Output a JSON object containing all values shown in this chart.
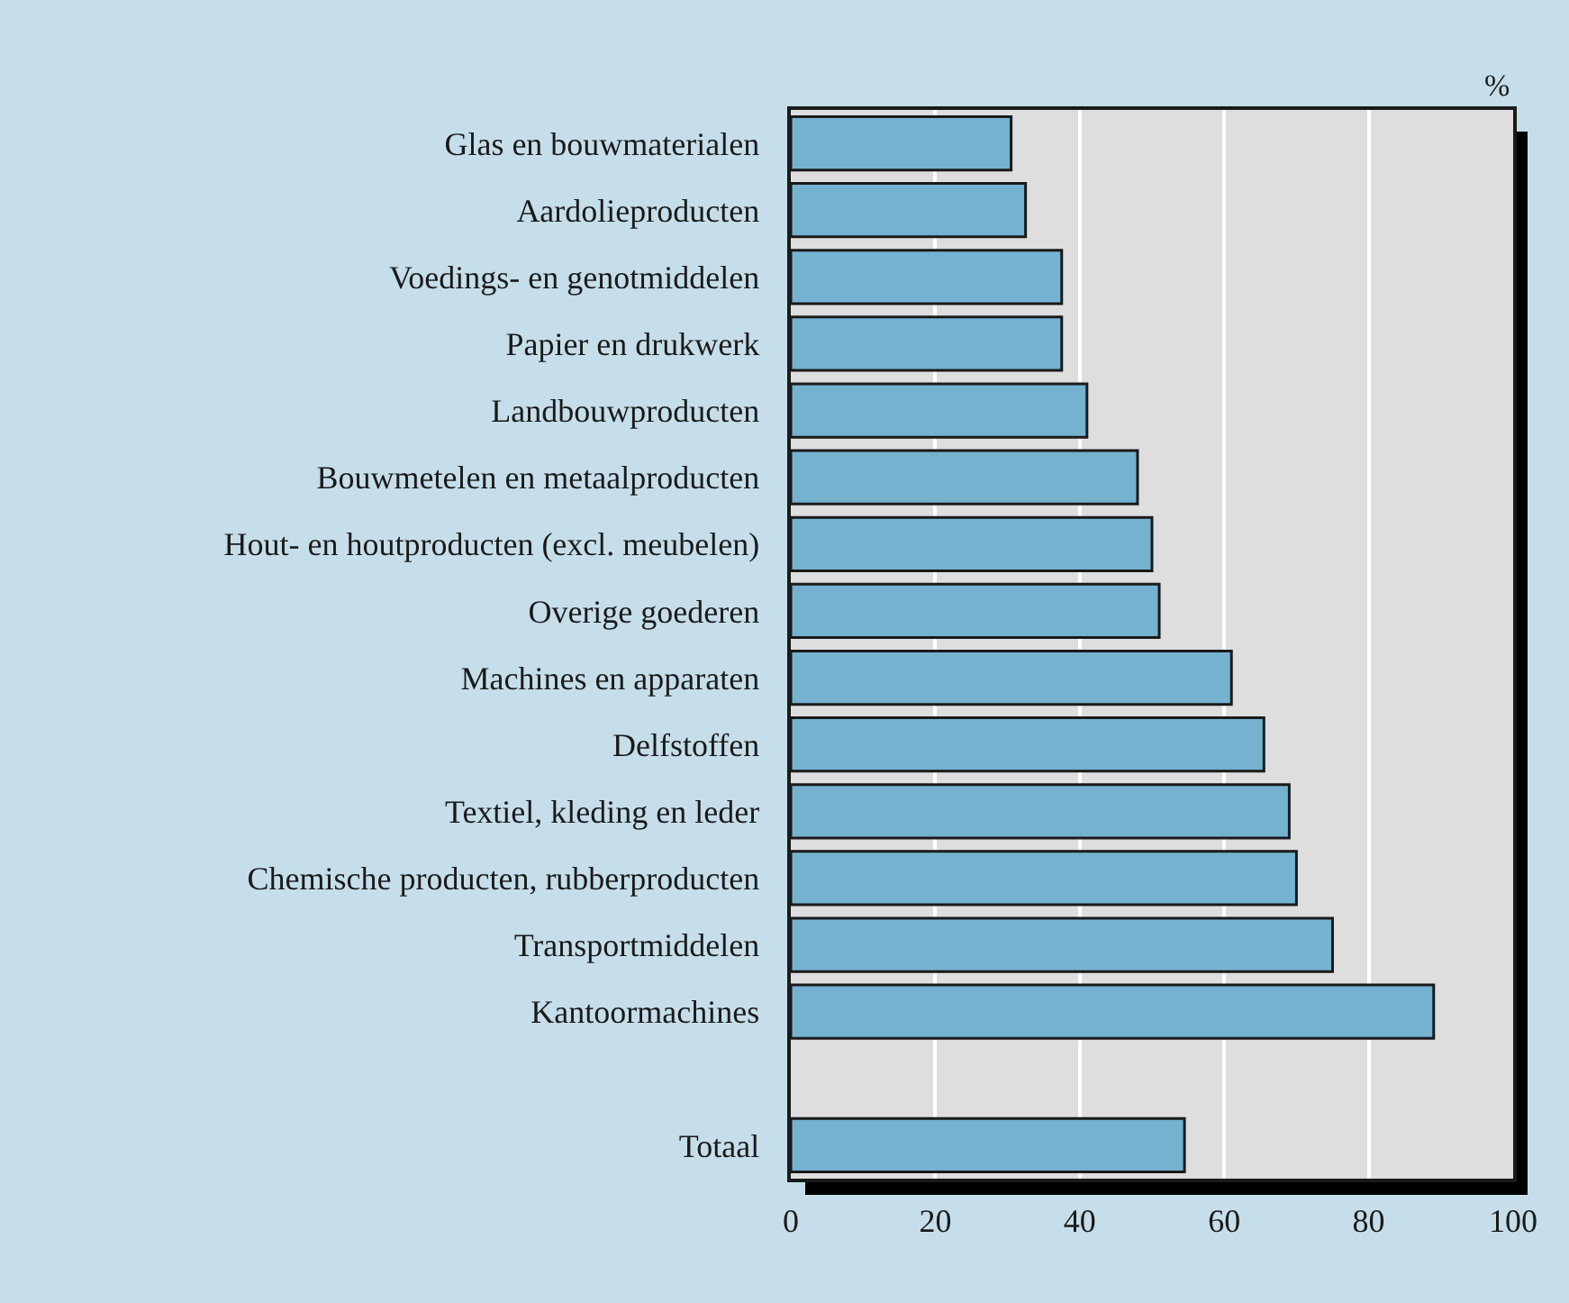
{
  "chart_data": {
    "type": "bar",
    "orientation": "horizontal",
    "xlabel": "%",
    "categories": [
      "Glas en bouwmaterialen",
      "Aardolieproducten",
      "Voedings- en genotmiddelen",
      "Papier en drukwerk",
      "Landbouwproducten",
      "Bouwmetelen en metaalproducten",
      "Hout- en houtproducten (excl. meubelen)",
      "Overige goederen",
      "Machines en apparaten",
      "Delfstoffen",
      "Textiel, kleding en leder",
      "Chemische producten, rubberproducten",
      "Transportmiddelen",
      "Kantoormachines",
      null,
      "Totaal"
    ],
    "values": [
      30.5,
      32.5,
      37.5,
      37.5,
      41,
      48,
      50,
      51,
      61,
      65.5,
      69,
      70,
      75,
      89,
      null,
      54.5
    ],
    "color": "#75b2d0",
    "xlim": [
      0,
      100
    ],
    "xticks": [
      0,
      20,
      40,
      60,
      80,
      100
    ],
    "grid": "x"
  }
}
